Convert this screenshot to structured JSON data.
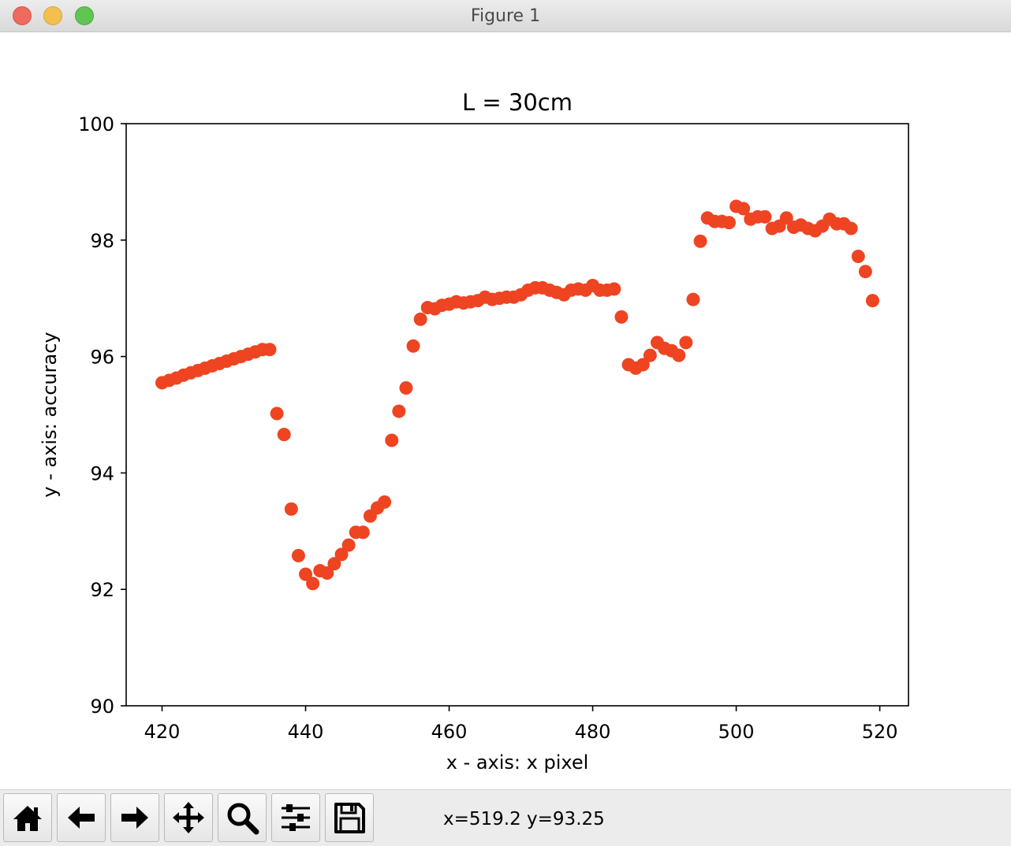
{
  "window": {
    "title": "Figure 1"
  },
  "toolbar": {
    "buttons": [
      {
        "name": "home-button",
        "icon": "home-icon"
      },
      {
        "name": "back-button",
        "icon": "arrow-left-icon"
      },
      {
        "name": "forward-button",
        "icon": "arrow-right-icon"
      },
      {
        "name": "pan-button",
        "icon": "move-icon"
      },
      {
        "name": "zoom-button",
        "icon": "magnifier-icon"
      },
      {
        "name": "configure-subplots-button",
        "icon": "sliders-icon"
      },
      {
        "name": "save-button",
        "icon": "floppy-disk-icon"
      }
    ],
    "coordinates": "x=519.2 y=93.25"
  },
  "chart_data": {
    "type": "scatter",
    "title": "L = 30cm",
    "xlabel": "x - axis: x pixel",
    "ylabel": "y - axis: accuracy",
    "xlim": [
      415,
      524
    ],
    "ylim": [
      90,
      100
    ],
    "xticks": [
      420,
      440,
      460,
      480,
      500,
      520
    ],
    "yticks": [
      90,
      92,
      94,
      96,
      98,
      100
    ],
    "grid": false,
    "marker_color": "#ee4422",
    "series": [
      {
        "x": [
          420,
          421,
          422,
          423,
          424,
          425,
          426,
          427,
          428,
          429,
          430,
          431,
          432,
          433,
          434,
          435,
          436,
          437,
          438,
          439,
          440,
          441,
          442,
          443,
          444,
          445,
          446,
          447,
          448,
          449,
          450,
          451,
          452,
          453,
          454,
          455,
          456,
          457,
          458,
          459,
          460,
          461,
          462,
          463,
          464,
          465,
          466,
          467,
          468,
          469,
          470,
          471,
          472,
          473,
          474,
          475,
          476,
          477,
          478,
          479,
          480,
          481,
          482,
          483,
          484,
          485,
          486,
          487,
          488,
          489,
          490,
          491,
          492,
          493,
          494,
          495,
          496,
          497,
          498,
          499,
          500,
          501,
          502,
          503,
          504,
          505,
          506,
          507,
          508,
          509,
          510,
          511,
          512,
          513,
          514,
          515,
          516,
          517,
          518,
          519
        ],
        "y": [
          95.55,
          95.59,
          95.63,
          95.68,
          95.72,
          95.76,
          95.8,
          95.84,
          95.88,
          95.92,
          95.96,
          96.0,
          96.04,
          96.08,
          96.12,
          96.12,
          95.02,
          94.66,
          93.38,
          92.58,
          92.26,
          92.1,
          92.32,
          92.28,
          92.44,
          92.6,
          92.76,
          92.98,
          92.98,
          93.26,
          93.4,
          93.5,
          94.56,
          95.06,
          95.46,
          96.18,
          96.64,
          96.84,
          96.82,
          96.88,
          96.9,
          96.94,
          96.92,
          96.94,
          96.96,
          97.02,
          96.98,
          97.0,
          97.02,
          97.02,
          97.06,
          97.14,
          97.18,
          97.18,
          97.14,
          97.1,
          97.06,
          97.14,
          97.16,
          97.14,
          97.22,
          97.14,
          97.14,
          97.16,
          96.68,
          95.86,
          95.8,
          95.86,
          96.02,
          96.24,
          96.14,
          96.1,
          96.02,
          96.24,
          96.98,
          97.98,
          98.38,
          98.32,
          98.32,
          98.3,
          98.58,
          98.54,
          98.36,
          98.4,
          98.4,
          98.2,
          98.24,
          98.38,
          98.22,
          98.26,
          98.2,
          98.16,
          98.24,
          98.36,
          98.28,
          98.28,
          98.2,
          97.72,
          97.46,
          96.96
        ]
      }
    ]
  }
}
